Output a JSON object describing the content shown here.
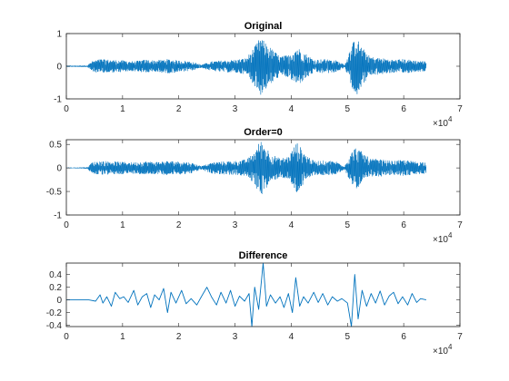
{
  "chart_data": [
    {
      "type": "line",
      "title": "Original",
      "xlabel": "",
      "ylabel": "",
      "xlim": [
        0,
        70000
      ],
      "ylim": [
        -1,
        1
      ],
      "xticks": [
        0,
        10000,
        20000,
        30000,
        40000,
        50000,
        60000,
        70000
      ],
      "xtick_labels": [
        "0",
        "1",
        "2",
        "3",
        "4",
        "5",
        "6",
        "7"
      ],
      "yticks": [
        -1,
        0,
        1
      ],
      "ytick_labels": [
        "-1",
        "0",
        "1"
      ],
      "x_multiplier": {
        "base": "×10",
        "exp": "4"
      },
      "series": [
        {
          "color": "#0072BD",
          "x_range": [
            0,
            64000
          ],
          "envelope": [
            [
              0,
              0.02
            ],
            [
              2000,
              0.02
            ],
            [
              3800,
              0.03
            ],
            [
              4500,
              0.15
            ],
            [
              6000,
              0.22
            ],
            [
              8000,
              0.2
            ],
            [
              10000,
              0.18
            ],
            [
              12000,
              0.15
            ],
            [
              14000,
              0.2
            ],
            [
              16000,
              0.18
            ],
            [
              18000,
              0.22
            ],
            [
              20000,
              0.18
            ],
            [
              22000,
              0.15
            ],
            [
              24000,
              0.05
            ],
            [
              26000,
              0.15
            ],
            [
              28000,
              0.18
            ],
            [
              30000,
              0.2
            ],
            [
              32000,
              0.25
            ],
            [
              33500,
              0.6
            ],
            [
              34500,
              0.9
            ],
            [
              35500,
              0.7
            ],
            [
              36500,
              0.55
            ],
            [
              38000,
              0.3
            ],
            [
              39500,
              0.35
            ],
            [
              41000,
              0.6
            ],
            [
              42500,
              0.4
            ],
            [
              44000,
              0.2
            ],
            [
              46000,
              0.22
            ],
            [
              48000,
              0.18
            ],
            [
              49500,
              0.05
            ],
            [
              50500,
              0.5
            ],
            [
              51500,
              0.95
            ],
            [
              52500,
              0.6
            ],
            [
              54000,
              0.3
            ],
            [
              56000,
              0.25
            ],
            [
              58000,
              0.2
            ],
            [
              60000,
              0.22
            ],
            [
              62000,
              0.18
            ],
            [
              64000,
              0.15
            ]
          ]
        }
      ]
    },
    {
      "type": "line",
      "title": "Order=0",
      "xlabel": "",
      "ylabel": "",
      "xlim": [
        0,
        70000
      ],
      "ylim": [
        -1,
        0.6
      ],
      "xticks": [
        0,
        10000,
        20000,
        30000,
        40000,
        50000,
        60000,
        70000
      ],
      "xtick_labels": [
        "0",
        "1",
        "2",
        "3",
        "4",
        "5",
        "6",
        "7"
      ],
      "yticks": [
        -1,
        -0.5,
        0,
        0.5
      ],
      "ytick_labels": [
        "-1",
        "-0.5",
        "0",
        "0.5"
      ],
      "x_multiplier": {
        "base": "×10",
        "exp": "4"
      },
      "series": [
        {
          "color": "#0072BD",
          "x_range": [
            0,
            64000
          ],
          "envelope": [
            [
              0,
              0.01
            ],
            [
              2000,
              0.01
            ],
            [
              3800,
              0.02
            ],
            [
              4500,
              0.12
            ],
            [
              6000,
              0.15
            ],
            [
              8000,
              0.14
            ],
            [
              10000,
              0.13
            ],
            [
              12000,
              0.12
            ],
            [
              14000,
              0.14
            ],
            [
              16000,
              0.13
            ],
            [
              18000,
              0.15
            ],
            [
              20000,
              0.14
            ],
            [
              22000,
              0.12
            ],
            [
              24000,
              0.04
            ],
            [
              26000,
              0.12
            ],
            [
              28000,
              0.14
            ],
            [
              30000,
              0.15
            ],
            [
              32000,
              0.18
            ],
            [
              33500,
              0.35
            ],
            [
              34500,
              0.6
            ],
            [
              35500,
              0.45
            ],
            [
              36500,
              0.3
            ],
            [
              38000,
              0.2
            ],
            [
              39500,
              0.25
            ],
            [
              41000,
              0.55
            ],
            [
              42500,
              0.3
            ],
            [
              44000,
              0.15
            ],
            [
              46000,
              0.16
            ],
            [
              48000,
              0.14
            ],
            [
              49500,
              0.04
            ],
            [
              50500,
              0.3
            ],
            [
              51500,
              0.45
            ],
            [
              52500,
              0.35
            ],
            [
              54000,
              0.2
            ],
            [
              56000,
              0.18
            ],
            [
              58000,
              0.15
            ],
            [
              60000,
              0.17
            ],
            [
              62000,
              0.14
            ],
            [
              64000,
              0.12
            ]
          ]
        }
      ]
    },
    {
      "type": "line",
      "title": "Difference",
      "xlabel": "",
      "ylabel": "",
      "xlim": [
        0,
        70000
      ],
      "ylim": [
        -0.42,
        0.58
      ],
      "xticks": [
        0,
        10000,
        20000,
        30000,
        40000,
        50000,
        60000,
        70000
      ],
      "xtick_labels": [
        "0",
        "1",
        "2",
        "3",
        "4",
        "5",
        "6",
        "7"
      ],
      "yticks": [
        -0.4,
        -0.2,
        0,
        0.2,
        0.4
      ],
      "ytick_labels": [
        "-0.4",
        "-0.2",
        "0",
        "0.2",
        "0.4"
      ],
      "x_multiplier": {
        "base": "×10",
        "exp": "4"
      },
      "series": [
        {
          "color": "#0072BD",
          "x_range": [
            0,
            64000
          ],
          "points": [
            [
              0,
              0
            ],
            [
              4000,
              0
            ],
            [
              5200,
              -0.02
            ],
            [
              6000,
              0.08
            ],
            [
              6500,
              -0.05
            ],
            [
              7200,
              0.05
            ],
            [
              8000,
              -0.1
            ],
            [
              8700,
              0.12
            ],
            [
              9500,
              0.02
            ],
            [
              10200,
              0.05
            ],
            [
              11000,
              -0.04
            ],
            [
              12000,
              0.15
            ],
            [
              12700,
              -0.08
            ],
            [
              13500,
              0.05
            ],
            [
              14300,
              0.1
            ],
            [
              15000,
              -0.12
            ],
            [
              15700,
              0.08
            ],
            [
              16500,
              0.0
            ],
            [
              17300,
              0.18
            ],
            [
              18000,
              -0.2
            ],
            [
              18600,
              0.12
            ],
            [
              19500,
              -0.05
            ],
            [
              20500,
              0.15
            ],
            [
              21300,
              -0.06
            ],
            [
              22200,
              0.02
            ],
            [
              23200,
              -0.08
            ],
            [
              24000,
              0.05
            ],
            [
              25000,
              0.2
            ],
            [
              25800,
              0.05
            ],
            [
              26700,
              -0.08
            ],
            [
              27500,
              0.12
            ],
            [
              28400,
              -0.05
            ],
            [
              29200,
              0.15
            ],
            [
              30000,
              -0.1
            ],
            [
              30800,
              0.06
            ],
            [
              31700,
              -0.02
            ],
            [
              32500,
              0.1
            ],
            [
              33000,
              -0.42
            ],
            [
              33500,
              0.2
            ],
            [
              34200,
              -0.15
            ],
            [
              35000,
              0.58
            ],
            [
              35600,
              -0.1
            ],
            [
              36300,
              0.08
            ],
            [
              37200,
              -0.05
            ],
            [
              38000,
              0.05
            ],
            [
              38700,
              -0.12
            ],
            [
              39500,
              0.1
            ],
            [
              40200,
              -0.2
            ],
            [
              40800,
              0.35
            ],
            [
              41500,
              -0.1
            ],
            [
              42200,
              0.05
            ],
            [
              43000,
              -0.05
            ],
            [
              44000,
              0.12
            ],
            [
              44800,
              -0.04
            ],
            [
              45600,
              0.1
            ],
            [
              46500,
              -0.08
            ],
            [
              47300,
              0.05
            ],
            [
              48200,
              -0.02
            ],
            [
              49000,
              0.02
            ],
            [
              50000,
              -0.05
            ],
            [
              50700,
              -0.42
            ],
            [
              51300,
              0.4
            ],
            [
              51900,
              -0.3
            ],
            [
              52600,
              0.15
            ],
            [
              53400,
              -0.1
            ],
            [
              54200,
              0.1
            ],
            [
              55000,
              -0.05
            ],
            [
              55800,
              0.14
            ],
            [
              56600,
              -0.08
            ],
            [
              57400,
              0.06
            ],
            [
              58200,
              0.12
            ],
            [
              59000,
              -0.06
            ],
            [
              59800,
              0.05
            ],
            [
              60700,
              -0.08
            ],
            [
              61500,
              0.1
            ],
            [
              62300,
              -0.04
            ],
            [
              63000,
              0.02
            ],
            [
              64000,
              0.0
            ]
          ]
        }
      ]
    }
  ]
}
